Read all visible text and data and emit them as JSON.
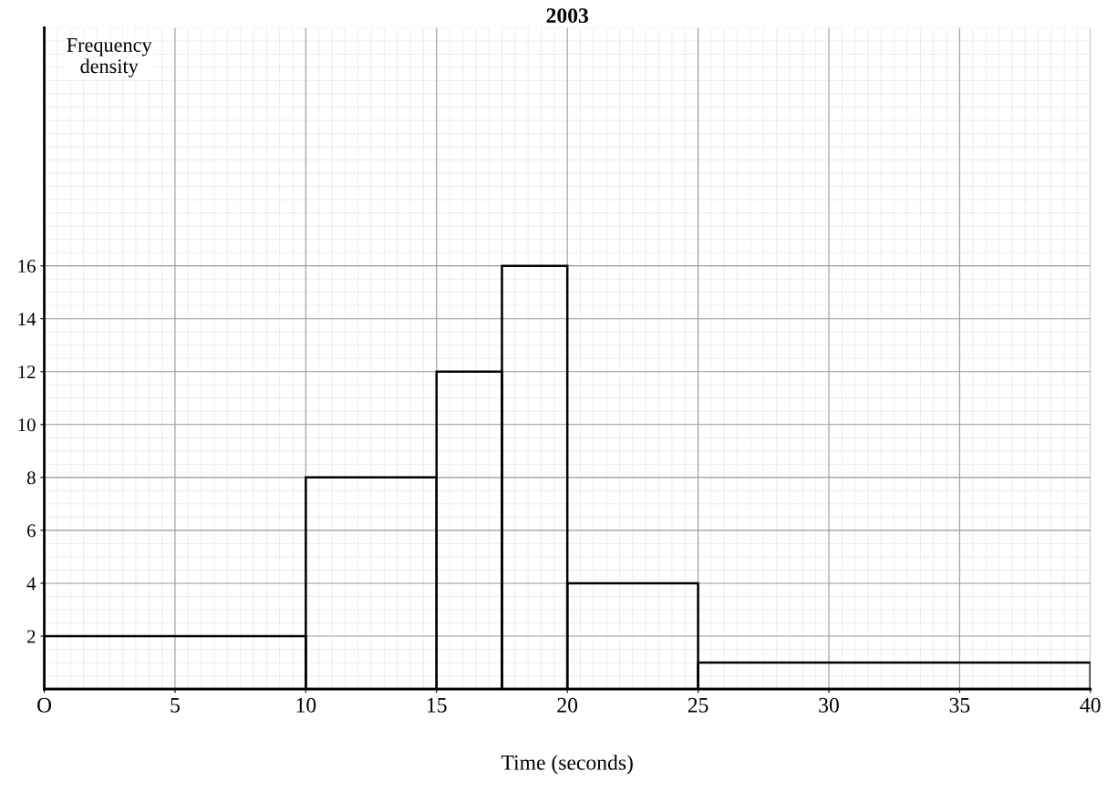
{
  "chart_data": {
    "type": "histogram",
    "title": "2003",
    "xlabel": "Time (seconds)",
    "ylabel": "Frequency density",
    "bins": [
      0,
      10,
      15,
      17.5,
      20,
      25,
      40
    ],
    "values": [
      2,
      8,
      12,
      16,
      4,
      1
    ],
    "color": "#000000",
    "xlim": [
      0,
      40
    ],
    "ylim": [
      0,
      25
    ],
    "xticks": [
      {
        "value": 0,
        "label": "O"
      },
      5,
      10,
      15,
      20,
      25,
      30,
      35,
      40
    ],
    "yticks": [
      2,
      4,
      6,
      8,
      10,
      12,
      14,
      16
    ],
    "grid": true
  }
}
